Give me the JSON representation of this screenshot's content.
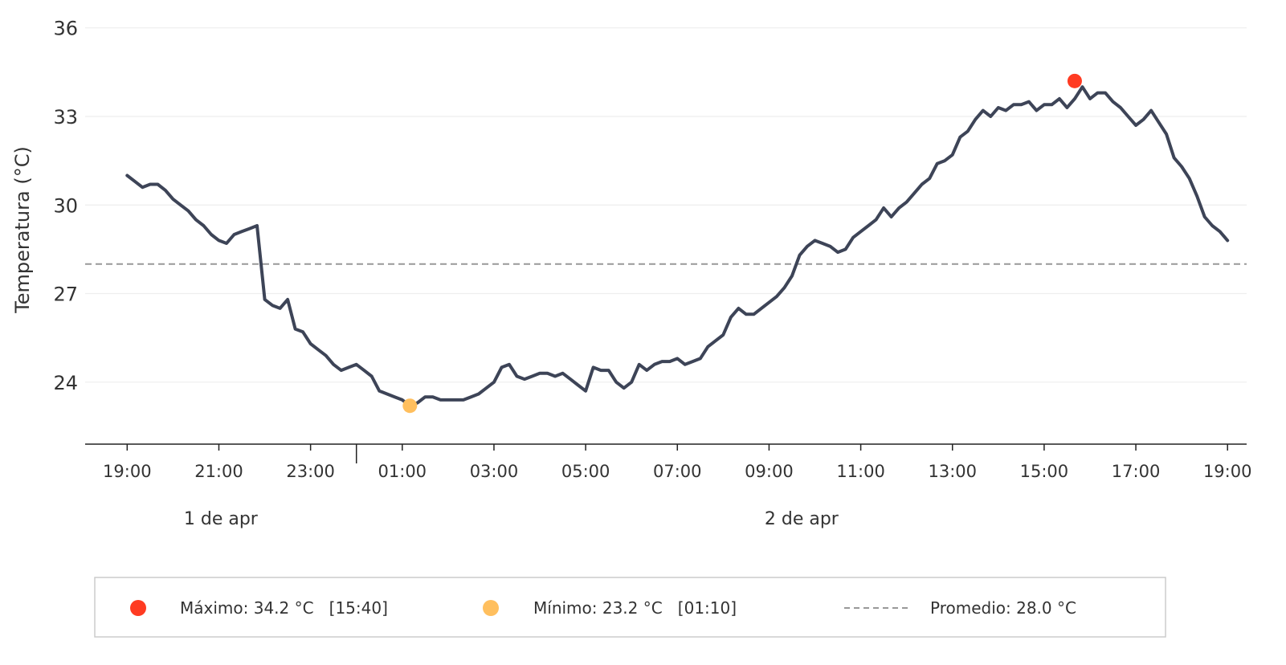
{
  "chart_data": {
    "type": "line",
    "ylabel": "Temperatura (°C)",
    "ylim": [
      21.9,
      36.4
    ],
    "yticks": [
      24,
      27,
      30,
      33,
      36
    ],
    "xlim": [
      "2025-04-01T18:05",
      "2025-04-02T19:25"
    ],
    "xtick_labels": [
      "19:00",
      "21:00",
      "23:00",
      "01:00",
      "03:00",
      "05:00",
      "07:00",
      "09:00",
      "11:00",
      "13:00",
      "15:00",
      "17:00",
      "19:00"
    ],
    "date_groups": [
      {
        "label": "1 de apr",
        "start": "2025-04-01T18:05",
        "end": "2025-04-02T00:00"
      },
      {
        "label": "2 de apr",
        "start": "2025-04-02T00:00",
        "end": "2025-04-02T19:25"
      }
    ],
    "day_separator": "2025-04-02T00:00",
    "grid": "horizontal",
    "colors": {
      "line": "#3d4457",
      "max": "#ff3b22",
      "min": "#ffbf5e",
      "average": "#999999",
      "grid": "#eeeeee",
      "axis": "#222222"
    },
    "average": 28.0,
    "max_point": {
      "x": "2025-04-02T15:40",
      "y": 34.2
    },
    "min_point": {
      "x": "2025-04-02T01:10",
      "y": 23.2
    },
    "series": [
      {
        "x": [
          "2025-04-01T19:00",
          "2025-04-01T19:10",
          "2025-04-01T19:20",
          "2025-04-01T19:30",
          "2025-04-01T19:40",
          "2025-04-01T19:50",
          "2025-04-01T20:00",
          "2025-04-01T20:10",
          "2025-04-01T20:20",
          "2025-04-01T20:30",
          "2025-04-01T20:40",
          "2025-04-01T20:50",
          "2025-04-01T21:00",
          "2025-04-01T21:10",
          "2025-04-01T21:20",
          "2025-04-01T21:30",
          "2025-04-01T21:40",
          "2025-04-01T21:50",
          "2025-04-01T22:00",
          "2025-04-01T22:10",
          "2025-04-01T22:20",
          "2025-04-01T22:30",
          "2025-04-01T22:40",
          "2025-04-01T22:50",
          "2025-04-01T23:00",
          "2025-04-01T23:10",
          "2025-04-01T23:20",
          "2025-04-01T23:30",
          "2025-04-01T23:40",
          "2025-04-01T23:50",
          "2025-04-02T00:00",
          "2025-04-02T00:10",
          "2025-04-02T00:20",
          "2025-04-02T00:30",
          "2025-04-02T00:40",
          "2025-04-02T00:50",
          "2025-04-02T01:00",
          "2025-04-02T01:10",
          "2025-04-02T01:20",
          "2025-04-02T01:30",
          "2025-04-02T01:40",
          "2025-04-02T01:50",
          "2025-04-02T02:00",
          "2025-04-02T02:10",
          "2025-04-02T02:20",
          "2025-04-02T02:30",
          "2025-04-02T02:40",
          "2025-04-02T02:50",
          "2025-04-02T03:00",
          "2025-04-02T03:10",
          "2025-04-02T03:20",
          "2025-04-02T03:30",
          "2025-04-02T03:40",
          "2025-04-02T03:50",
          "2025-04-02T04:00",
          "2025-04-02T04:10",
          "2025-04-02T04:20",
          "2025-04-02T04:30",
          "2025-04-02T04:40",
          "2025-04-02T04:50",
          "2025-04-02T05:00",
          "2025-04-02T05:10",
          "2025-04-02T05:20",
          "2025-04-02T05:30",
          "2025-04-02T05:40",
          "2025-04-02T05:50",
          "2025-04-02T06:00",
          "2025-04-02T06:10",
          "2025-04-02T06:20",
          "2025-04-02T06:30",
          "2025-04-02T06:40",
          "2025-04-02T06:50",
          "2025-04-02T07:00",
          "2025-04-02T07:10",
          "2025-04-02T07:20",
          "2025-04-02T07:30",
          "2025-04-02T07:40",
          "2025-04-02T07:50",
          "2025-04-02T08:00",
          "2025-04-02T08:10",
          "2025-04-02T08:20",
          "2025-04-02T08:30",
          "2025-04-02T08:40",
          "2025-04-02T08:50",
          "2025-04-02T09:00",
          "2025-04-02T09:10",
          "2025-04-02T09:20",
          "2025-04-02T09:30",
          "2025-04-02T09:40",
          "2025-04-02T09:50",
          "2025-04-02T10:00",
          "2025-04-02T10:10",
          "2025-04-02T10:20",
          "2025-04-02T10:30",
          "2025-04-02T10:40",
          "2025-04-02T10:50",
          "2025-04-02T11:00",
          "2025-04-02T11:10",
          "2025-04-02T11:20",
          "2025-04-02T11:30",
          "2025-04-02T11:40",
          "2025-04-02T11:50",
          "2025-04-02T12:00",
          "2025-04-02T12:10",
          "2025-04-02T12:20",
          "2025-04-02T12:30",
          "2025-04-02T12:40",
          "2025-04-02T12:50",
          "2025-04-02T13:00",
          "2025-04-02T13:10",
          "2025-04-02T13:20",
          "2025-04-02T13:30",
          "2025-04-02T13:40",
          "2025-04-02T13:50",
          "2025-04-02T14:00",
          "2025-04-02T14:10",
          "2025-04-02T14:20",
          "2025-04-02T14:30",
          "2025-04-02T14:40",
          "2025-04-02T14:50",
          "2025-04-02T15:00",
          "2025-04-02T15:10",
          "2025-04-02T15:20",
          "2025-04-02T15:30",
          "2025-04-02T15:40",
          "2025-04-02T15:50",
          "2025-04-02T16:00",
          "2025-04-02T16:10",
          "2025-04-02T16:20",
          "2025-04-02T16:30",
          "2025-04-02T16:40",
          "2025-04-02T16:50",
          "2025-04-02T17:00",
          "2025-04-02T17:10",
          "2025-04-02T17:20",
          "2025-04-02T17:30",
          "2025-04-02T17:40",
          "2025-04-02T17:50",
          "2025-04-02T18:00",
          "2025-04-02T18:10",
          "2025-04-02T18:20",
          "2025-04-02T18:30",
          "2025-04-02T18:40",
          "2025-04-02T18:50",
          "2025-04-02T19:00"
        ],
        "y": [
          31.0,
          30.8,
          30.6,
          30.7,
          30.7,
          30.5,
          30.2,
          30.0,
          29.8,
          29.5,
          29.3,
          29.0,
          28.8,
          28.7,
          29.0,
          29.1,
          29.2,
          29.3,
          26.8,
          26.6,
          26.5,
          26.8,
          25.8,
          25.7,
          25.3,
          25.1,
          24.9,
          24.6,
          24.4,
          24.5,
          24.6,
          24.4,
          24.2,
          23.7,
          23.6,
          23.5,
          23.4,
          23.2,
          23.3,
          23.5,
          23.5,
          23.4,
          23.4,
          23.4,
          23.4,
          23.5,
          23.6,
          23.8,
          24.0,
          24.5,
          24.6,
          24.2,
          24.1,
          24.2,
          24.3,
          24.3,
          24.2,
          24.3,
          24.1,
          23.9,
          23.7,
          24.5,
          24.4,
          24.4,
          24.0,
          23.8,
          24.0,
          24.6,
          24.4,
          24.6,
          24.7,
          24.7,
          24.8,
          24.6,
          24.7,
          24.8,
          25.2,
          25.4,
          25.6,
          26.2,
          26.5,
          26.3,
          26.3,
          26.5,
          26.7,
          26.9,
          27.2,
          27.6,
          28.3,
          28.6,
          28.8,
          28.7,
          28.6,
          28.4,
          28.5,
          28.9,
          29.1,
          29.3,
          29.5,
          29.9,
          29.6,
          29.9,
          30.1,
          30.4,
          30.7,
          30.9,
          31.4,
          31.5,
          31.7,
          32.3,
          32.5,
          32.9,
          33.2,
          33.0,
          33.3,
          33.2,
          33.4,
          33.4,
          33.5,
          33.2,
          33.4,
          33.4,
          33.6,
          33.3,
          33.6,
          34.0,
          33.6,
          33.8,
          33.8,
          33.5,
          33.3,
          33.0,
          32.7,
          32.9,
          33.2,
          32.8,
          32.4,
          31.6,
          31.3,
          30.9,
          30.3,
          29.6,
          29.3,
          29.1,
          28.8
        ]
      }
    ]
  },
  "legend": {
    "max_label": "Máximo: 34.2 °C   [15:40]",
    "min_label": "Mínimo: 23.2 °C   [01:10]",
    "avg_label": "Promedio: 28.0 °C",
    "position": "bottom"
  }
}
